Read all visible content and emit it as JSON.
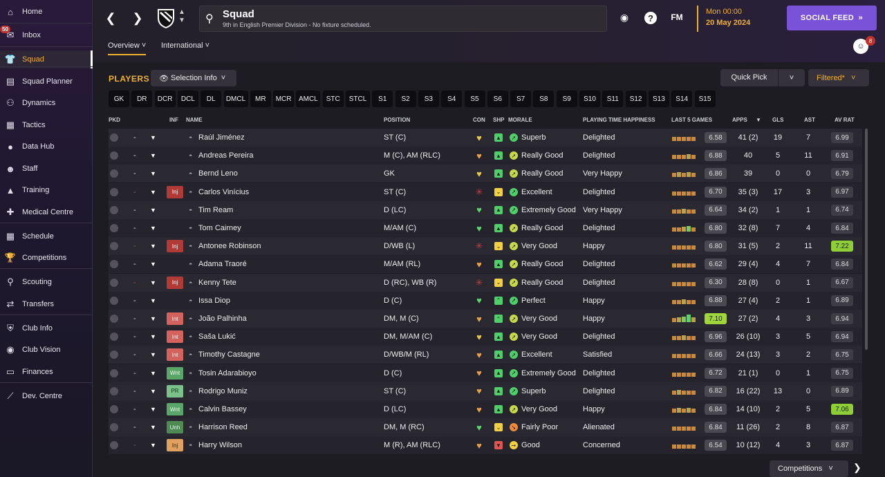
{
  "sidebar": {
    "inbox_badge": "50",
    "items": [
      {
        "label": "Home",
        "icon": "home-icon"
      },
      {
        "label": "Inbox",
        "icon": "inbox-icon"
      },
      {
        "label": "Squad",
        "icon": "shirt-icon"
      },
      {
        "label": "Squad Planner",
        "icon": "clipboard-icon"
      },
      {
        "label": "Dynamics",
        "icon": "people-icon"
      },
      {
        "label": "Tactics",
        "icon": "tactics-icon"
      },
      {
        "label": "Data Hub",
        "icon": "data-icon"
      },
      {
        "label": "Staff",
        "icon": "staff-icon"
      },
      {
        "label": "Training",
        "icon": "training-icon"
      },
      {
        "label": "Medical Centre",
        "icon": "medical-icon"
      },
      {
        "label": "Schedule",
        "icon": "calendar-icon"
      },
      {
        "label": "Competitions",
        "icon": "trophy-icon"
      },
      {
        "label": "Scouting",
        "icon": "search-icon"
      },
      {
        "label": "Transfers",
        "icon": "transfer-icon"
      },
      {
        "label": "Club Info",
        "icon": "shield-icon"
      },
      {
        "label": "Club Vision",
        "icon": "vision-icon"
      },
      {
        "label": "Finances",
        "icon": "money-icon"
      },
      {
        "label": "Dev. Centre",
        "icon": "dev-icon"
      }
    ]
  },
  "header": {
    "title": "Squad",
    "subtitle": "9th in English Premier Division - No fixture scheduled.",
    "help": "?",
    "fm": "FM",
    "time": "Mon 00:00",
    "date": "20 May 2024",
    "social_feed": "SOCIAL FEED",
    "notif_count": "8",
    "tabs": [
      "Overview",
      "International"
    ]
  },
  "toolbar": {
    "players_label": "PLAYERS",
    "selection_info": "Selection Info",
    "quick_pick": "Quick Pick",
    "filtered": "Filtered*"
  },
  "positions": [
    "GK",
    "DR",
    "DCR",
    "DCL",
    "DL",
    "DMCL",
    "MR",
    "MCR",
    "AMCL",
    "STC",
    "STCL",
    "S1",
    "S2",
    "S3",
    "S4",
    "S5",
    "S6",
    "S7",
    "S8",
    "S9",
    "S10",
    "S11",
    "S12",
    "S13",
    "S14",
    "S15"
  ],
  "columns": [
    "PKD",
    "INF",
    "NAME",
    "POSITION",
    "CON",
    "SHP",
    "MORALE",
    "PLAYING TIME HAPPINESS",
    "LAST 5 GAMES",
    "APPS",
    "GLS",
    "AST",
    "AV RAT"
  ],
  "players": [
    {
      "inf": "",
      "name": "Raúl Jiménez",
      "pos": "ST (C)",
      "con": "y",
      "shp": "up",
      "mor": "Superb",
      "morc": "g",
      "pth": "Delighted",
      "last": "6.58",
      "apps": "41 (2)",
      "gls": "19",
      "ast": "7",
      "av": "6.99",
      "av_hi": false,
      "last_hi": false,
      "form": [
        4,
        4,
        4,
        4,
        4
      ]
    },
    {
      "inf": "",
      "name": "Andreas Pereira",
      "pos": "M (C), AM (RLC)",
      "con": "o",
      "shp": "up",
      "mor": "Really Good",
      "morc": "y",
      "pth": "Delighted",
      "last": "6.88",
      "apps": "40",
      "gls": "5",
      "ast": "11",
      "av": "6.91",
      "av_hi": false,
      "last_hi": false,
      "form": [
        4,
        4,
        4,
        5,
        4
      ]
    },
    {
      "inf": "",
      "name": "Bernd Leno",
      "pos": "GK",
      "con": "y",
      "shp": "up",
      "mor": "Really Good",
      "morc": "y",
      "pth": "Very Happy",
      "last": "6.86",
      "apps": "39",
      "gls": "0",
      "ast": "0",
      "av": "6.79",
      "av_hi": false,
      "last_hi": false,
      "form": [
        4,
        5,
        4,
        5,
        4
      ]
    },
    {
      "inf": "Inj",
      "name": "Carlos Vinícius",
      "pos": "ST (C)",
      "con": "inj",
      "shp": "mid",
      "mor": "Excellent",
      "morc": "g",
      "pth": "Delighted",
      "last": "6.70",
      "apps": "35 (3)",
      "gls": "17",
      "ast": "3",
      "av": "6.97",
      "av_hi": false,
      "last_hi": false,
      "form": [
        4,
        4,
        4,
        4,
        4
      ]
    },
    {
      "inf": "",
      "name": "Tim Ream",
      "pos": "D (LC)",
      "con": "g",
      "shp": "up",
      "mor": "Extremely Good",
      "morc": "g",
      "pth": "Very Happy",
      "last": "6.64",
      "apps": "34 (2)",
      "gls": "1",
      "ast": "1",
      "av": "6.74",
      "av_hi": false,
      "last_hi": false,
      "form": [
        4,
        4,
        5,
        4,
        4
      ]
    },
    {
      "inf": "",
      "name": "Tom Cairney",
      "pos": "M/AM (C)",
      "con": "g",
      "shp": "up",
      "mor": "Really Good",
      "morc": "y",
      "pth": "Delighted",
      "last": "6.80",
      "apps": "32 (8)",
      "gls": "7",
      "ast": "4",
      "av": "6.84",
      "av_hi": false,
      "last_hi": false,
      "form": [
        4,
        4,
        5,
        6,
        4
      ]
    },
    {
      "inf": "Inj",
      "name": "Antonee Robinson",
      "pos": "D/WB (L)",
      "con": "inj",
      "shp": "mid",
      "mor": "Very Good",
      "morc": "y",
      "pth": "Happy",
      "last": "6.80",
      "apps": "31 (5)",
      "gls": "2",
      "ast": "11",
      "av": "7.22",
      "av_hi": true,
      "last_hi": false,
      "form": [
        4,
        4,
        4,
        4,
        4
      ]
    },
    {
      "inf": "",
      "name": "Adama Traoré",
      "pos": "M/AM (RL)",
      "con": "o",
      "shp": "up",
      "mor": "Really Good",
      "morc": "y",
      "pth": "Delighted",
      "last": "6.62",
      "apps": "29 (4)",
      "gls": "4",
      "ast": "7",
      "av": "6.84",
      "av_hi": false,
      "last_hi": false,
      "form": [
        4,
        4,
        4,
        4,
        4
      ]
    },
    {
      "inf": "Inj",
      "name": "Kenny Tete",
      "pos": "D (RC), WB (R)",
      "con": "inj",
      "shp": "mid",
      "mor": "Really Good",
      "morc": "y",
      "pth": "Delighted",
      "last": "6.30",
      "apps": "28 (8)",
      "gls": "0",
      "ast": "1",
      "av": "6.67",
      "av_hi": false,
      "last_hi": false,
      "form": [
        4,
        4,
        4,
        4,
        4
      ]
    },
    {
      "inf": "",
      "name": "Issa Diop",
      "pos": "D (C)",
      "con": "g",
      "shp": "upup",
      "mor": "Perfect",
      "morc": "g",
      "pth": "Happy",
      "last": "6.88",
      "apps": "27 (4)",
      "gls": "2",
      "ast": "1",
      "av": "6.89",
      "av_hi": false,
      "last_hi": false,
      "form": [
        4,
        4,
        5,
        4,
        4
      ]
    },
    {
      "inf": "Int",
      "name": "João Palhinha",
      "pos": "DM, M (C)",
      "con": "o",
      "shp": "upup",
      "mor": "Very Good",
      "morc": "y",
      "pth": "Happy",
      "last": "7.10",
      "apps": "27 (2)",
      "gls": "4",
      "ast": "3",
      "av": "6.94",
      "av_hi": false,
      "last_hi": true,
      "form": [
        4,
        5,
        6,
        9,
        5
      ]
    },
    {
      "inf": "Int",
      "name": "Saša Lukić",
      "pos": "DM, M/AM (C)",
      "con": "y",
      "shp": "up",
      "mor": "Very Good",
      "morc": "y",
      "pth": "Delighted",
      "last": "6.96",
      "apps": "26 (10)",
      "gls": "3",
      "ast": "5",
      "av": "6.94",
      "av_hi": false,
      "last_hi": false,
      "form": [
        4,
        4,
        5,
        4,
        4
      ]
    },
    {
      "inf": "Int",
      "name": "Timothy Castagne",
      "pos": "D/WB/M (RL)",
      "con": "o",
      "shp": "up",
      "mor": "Excellent",
      "morc": "g",
      "pth": "Satisfied",
      "last": "6.66",
      "apps": "24 (13)",
      "gls": "3",
      "ast": "2",
      "av": "6.75",
      "av_hi": false,
      "last_hi": false,
      "form": [
        4,
        4,
        4,
        4,
        4
      ]
    },
    {
      "inf": "Wnt",
      "name": "Tosin Adarabioyo",
      "pos": "D (C)",
      "con": "o",
      "shp": "up",
      "mor": "Extremely Good",
      "morc": "g",
      "pth": "Delighted",
      "last": "6.72",
      "apps": "21 (1)",
      "gls": "0",
      "ast": "1",
      "av": "6.75",
      "av_hi": false,
      "last_hi": false,
      "form": [
        4,
        4,
        4,
        4,
        4
      ]
    },
    {
      "inf": "PR",
      "name": "Rodrigo Muniz",
      "pos": "ST (C)",
      "con": "o",
      "shp": "up",
      "mor": "Superb",
      "morc": "g",
      "pth": "Delighted",
      "last": "6.82",
      "apps": "16 (22)",
      "gls": "13",
      "ast": "0",
      "av": "6.89",
      "av_hi": false,
      "last_hi": false,
      "form": [
        4,
        5,
        4,
        4,
        4
      ]
    },
    {
      "inf": "Wnt",
      "name": "Calvin Bassey",
      "pos": "D (LC)",
      "con": "o",
      "shp": "up",
      "mor": "Very Good",
      "morc": "y",
      "pth": "Happy",
      "last": "6.84",
      "apps": "14 (10)",
      "gls": "2",
      "ast": "5",
      "av": "7.06",
      "av_hi": true,
      "last_hi": false,
      "form": [
        4,
        5,
        4,
        5,
        4
      ]
    },
    {
      "inf": "Unh",
      "name": "Harrison Reed",
      "pos": "DM, M (RC)",
      "con": "g",
      "shp": "mid",
      "mor": "Fairly Poor",
      "morc": "o",
      "pth": "Alienated",
      "last": "6.84",
      "apps": "11 (26)",
      "gls": "2",
      "ast": "8",
      "av": "6.87",
      "av_hi": false,
      "last_hi": false,
      "form": [
        4,
        4,
        4,
        4,
        4
      ]
    },
    {
      "inf": "InjO",
      "inf_label": "Inj",
      "name": "Harry Wilson",
      "pos": "M (R), AM (RLC)",
      "con": "o",
      "shp": "down",
      "mor": "Good",
      "morc": "yy",
      "pth": "Concerned",
      "last": "6.54",
      "apps": "10 (12)",
      "gls": "4",
      "ast": "3",
      "av": "6.87",
      "av_hi": false,
      "last_hi": false,
      "form": [
        4,
        4,
        4,
        4,
        4
      ]
    }
  ],
  "footer": {
    "competitions": "Competitions"
  }
}
